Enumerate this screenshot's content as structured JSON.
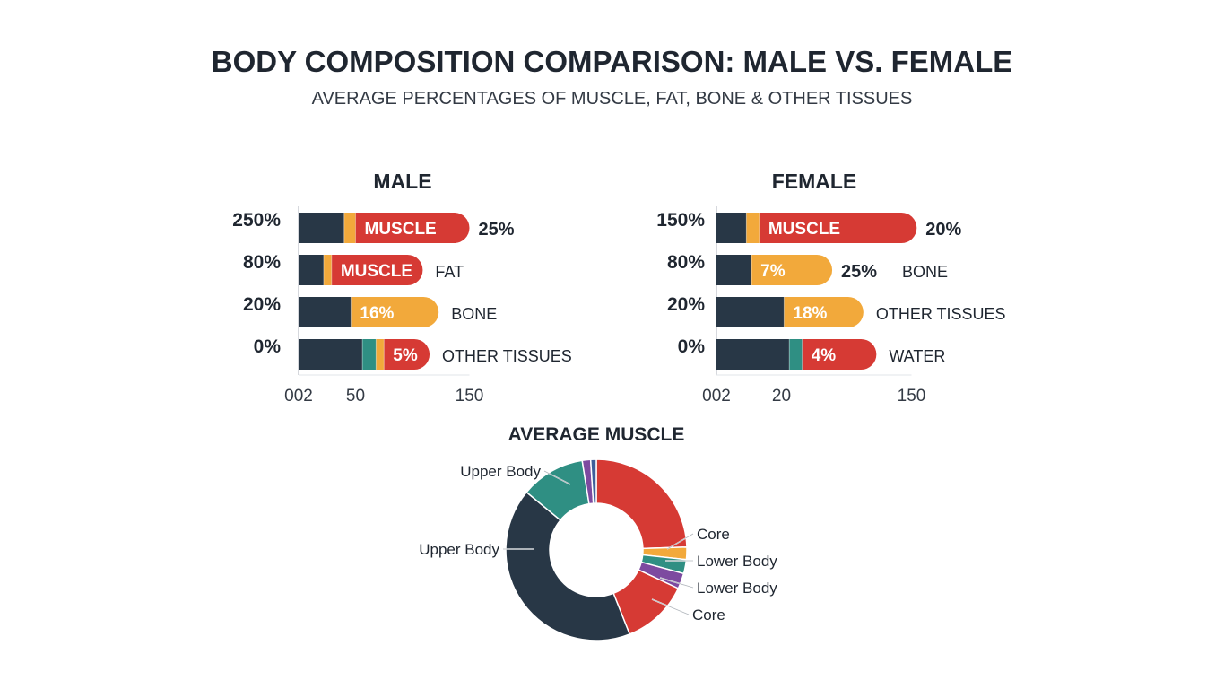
{
  "header": {
    "title": "BODY COMPOSITION COMPARISON: MALE VS. FEMALE",
    "subtitle": "AVERAGE PERCENTAGES OF MUSCLE, FAT, BONE & OTHER TISSUES"
  },
  "colors": {
    "navy": "#283746",
    "orange": "#f2a93b",
    "red": "#d63a34",
    "teal": "#2f8f83",
    "purple": "#7d4aa0",
    "blue": "#3e5f9a"
  },
  "chart_data": [
    {
      "type": "bar",
      "orientation": "horizontal",
      "stacked": true,
      "title": "MALE",
      "yticks": [
        "250%",
        "80%",
        "20%",
        "0%"
      ],
      "xticks": [
        {
          "label": "002",
          "value": 0
        },
        {
          "label": "50",
          "value": 50
        },
        {
          "label": "150",
          "value": 150
        }
      ],
      "xlim": [
        0,
        150
      ],
      "rows": [
        {
          "segments": [
            {
              "color": "navy",
              "value": 40
            },
            {
              "color": "orange",
              "value": 10
            },
            {
              "color": "red",
              "value": 100,
              "label": "MUSCLE",
              "rounded": true
            }
          ],
          "value_label": "25%",
          "value_bold": true
        },
        {
          "segments": [
            {
              "color": "navy",
              "value": 22
            },
            {
              "color": "orange",
              "value": 7
            },
            {
              "color": "red",
              "value": 80,
              "label": "MUSCLE",
              "rounded": true
            }
          ],
          "value_label": "FAT",
          "value_bold": false
        },
        {
          "segments": [
            {
              "color": "navy",
              "value": 46
            },
            {
              "color": "orange",
              "value": 77,
              "label": "16%",
              "rounded": true
            }
          ],
          "value_label": "BONE",
          "value_bold": false
        },
        {
          "segments": [
            {
              "color": "navy",
              "value": 56
            },
            {
              "color": "teal",
              "value": 12
            },
            {
              "color": "orange",
              "value": 7
            },
            {
              "color": "red",
              "value": 40,
              "label": "5%",
              "rounded": true
            }
          ],
          "value_label": "OTHER TISSUES",
          "value_bold": false
        }
      ]
    },
    {
      "type": "bar",
      "orientation": "horizontal",
      "stacked": true,
      "title": "FEMALE",
      "yticks": [
        "150%",
        "80%",
        "20%",
        "0%"
      ],
      "xticks": [
        {
          "label": "002",
          "value": 0
        },
        {
          "label": "20",
          "value": 50
        },
        {
          "label": "150",
          "value": 150
        }
      ],
      "xlim": [
        0,
        150
      ],
      "rows": [
        {
          "segments": [
            {
              "color": "navy",
              "value": 23
            },
            {
              "color": "orange",
              "value": 10
            },
            {
              "color": "red",
              "value": 121,
              "label": "MUSCLE",
              "rounded": true
            }
          ],
          "value_label": "20%",
          "value_bold": true
        },
        {
          "segments": [
            {
              "color": "navy",
              "value": 27
            },
            {
              "color": "orange",
              "value": 62,
              "label": "7%",
              "rounded": true
            }
          ],
          "value_label": "25%",
          "value_bold": true,
          "extra_label": "BONE"
        },
        {
          "segments": [
            {
              "color": "navy",
              "value": 52
            },
            {
              "color": "orange",
              "value": 61,
              "label": "18%",
              "rounded": true
            }
          ],
          "value_label": "OTHER TISSUES",
          "value_bold": false
        },
        {
          "segments": [
            {
              "color": "navy",
              "value": 56
            },
            {
              "color": "teal",
              "value": 10
            },
            {
              "color": "red",
              "value": 57,
              "label": "4%",
              "rounded": true
            }
          ],
          "value_label": "WATER",
          "value_bold": false
        }
      ]
    },
    {
      "type": "pie",
      "donut": true,
      "title": "AVERAGE MUSCLE",
      "slices": [
        {
          "color": "red",
          "value": 24.5
        },
        {
          "color": "orange",
          "value": 2.2
        },
        {
          "color": "teal",
          "value": 2.5
        },
        {
          "color": "purple",
          "value": 2.8
        },
        {
          "color": "red",
          "value": 12
        },
        {
          "color": "navy",
          "value": 42
        },
        {
          "color": "teal",
          "value": 11.5
        },
        {
          "color": "purple",
          "value": 1.5
        },
        {
          "color": "blue",
          "value": 1.0
        }
      ],
      "labels": [
        {
          "text": "Upper Body",
          "side": "left",
          "slice": 6
        },
        {
          "text": "Upper Body",
          "side": "left",
          "slice": 5
        },
        {
          "text": "Core",
          "side": "right",
          "slice": 1
        },
        {
          "text": "Lower Body",
          "side": "right",
          "slice": 2
        },
        {
          "text": "Lower Body",
          "side": "right",
          "slice": 3
        },
        {
          "text": "Core",
          "side": "right",
          "slice": 4
        }
      ]
    }
  ]
}
